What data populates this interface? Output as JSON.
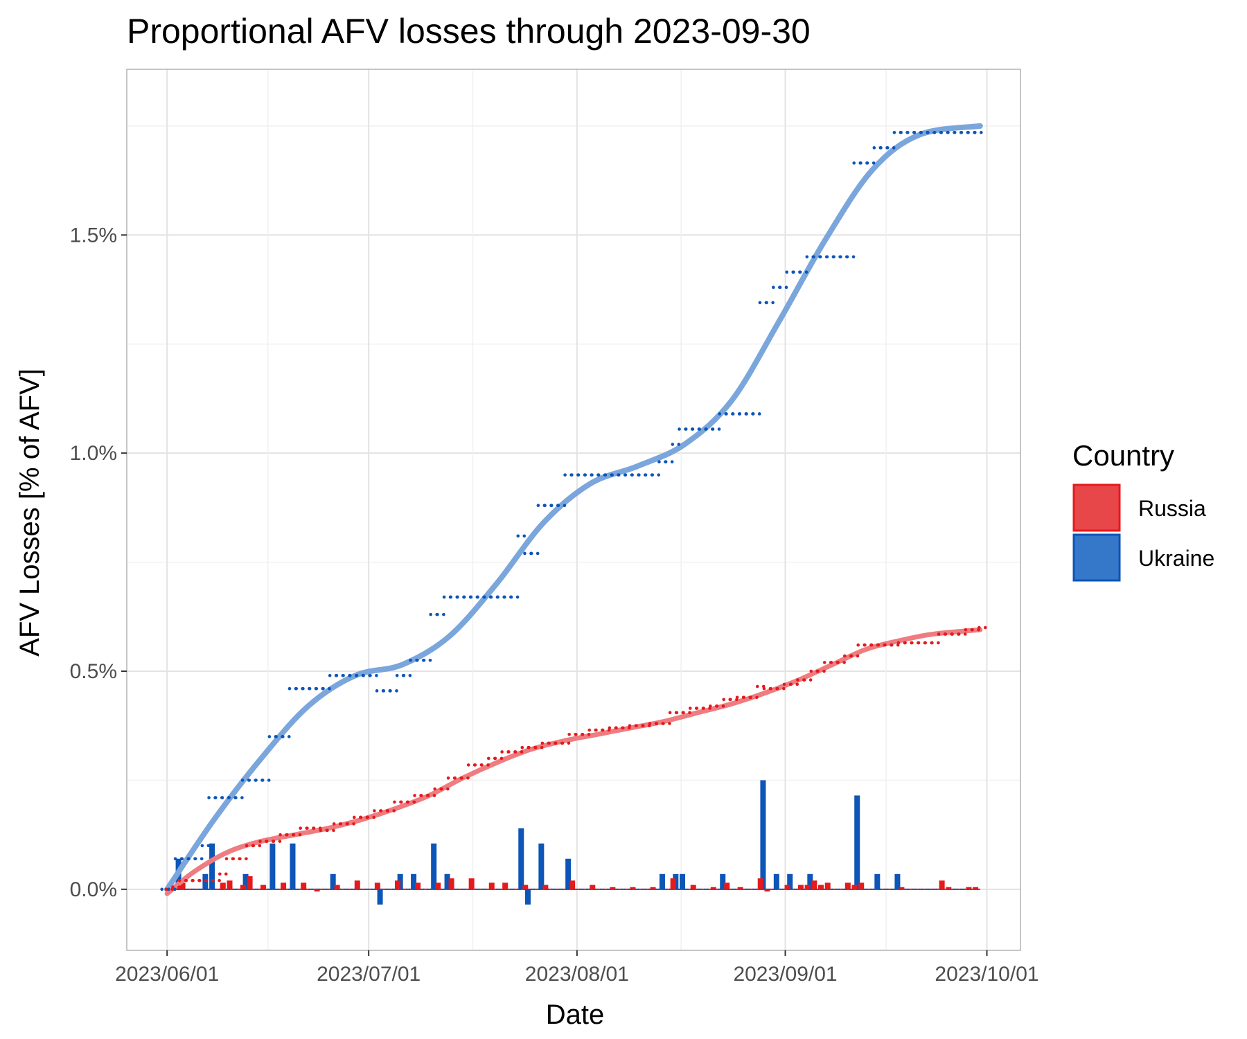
{
  "chart_data": {
    "type": "line",
    "title": "Proportional AFV losses through 2023-09-30",
    "xlabel": "Date",
    "ylabel": "AFV Losses [% of AFV]",
    "xlim": [
      "2023-05-26",
      "2023-10-06"
    ],
    "ylim": [
      -0.14,
      1.88
    ],
    "x_ticks": [
      "2023-06-01",
      "2023-07-01",
      "2023-08-01",
      "2023-09-01",
      "2023-10-01"
    ],
    "x_tick_labels": [
      "2023/06/01",
      "2023/07/01",
      "2023/08/01",
      "2023/09/01",
      "2023/10/01"
    ],
    "y_ticks": [
      0,
      0.5,
      1.0,
      1.5
    ],
    "y_tick_labels": [
      "0.0%",
      "0.5%",
      "1.0%",
      "1.5%"
    ],
    "grid": true,
    "legend": {
      "title": "Country",
      "position": "right",
      "entries": [
        "Russia",
        "Ukraine"
      ]
    },
    "colors": {
      "Russia": {
        "point": "#e41a1c",
        "fill": "#e8474a",
        "smooth": "#ee7c80"
      },
      "Ukraine": {
        "point": "#0d55b7",
        "fill": "#3577c8",
        "smooth": "#7aa6dc"
      }
    },
    "series": [
      {
        "name": "Ukraine",
        "cumulative_changes": [
          [
            "2023-06-01",
            0.0
          ],
          [
            "2023-06-02",
            0.0
          ],
          [
            "2023-06-03",
            0.07
          ],
          [
            "2023-06-07",
            0.1
          ],
          [
            "2023-06-08",
            0.21
          ],
          [
            "2023-06-13",
            0.25
          ],
          [
            "2023-06-17",
            0.35
          ],
          [
            "2023-06-20",
            0.46
          ],
          [
            "2023-06-26",
            0.49
          ],
          [
            "2023-07-03",
            0.455
          ],
          [
            "2023-07-06",
            0.49
          ],
          [
            "2023-07-08",
            0.525
          ],
          [
            "2023-07-11",
            0.63
          ],
          [
            "2023-07-13",
            0.67
          ],
          [
            "2023-07-24",
            0.81
          ],
          [
            "2023-07-25",
            0.77
          ],
          [
            "2023-07-27",
            0.88
          ],
          [
            "2023-07-31",
            0.95
          ],
          [
            "2023-08-14",
            0.98
          ],
          [
            "2023-08-16",
            1.02
          ],
          [
            "2023-08-17",
            1.055
          ],
          [
            "2023-08-23",
            1.09
          ],
          [
            "2023-08-29",
            1.345
          ],
          [
            "2023-08-31",
            1.38
          ],
          [
            "2023-09-02",
            1.415
          ],
          [
            "2023-09-05",
            1.45
          ],
          [
            "2023-09-12",
            1.665
          ],
          [
            "2023-09-15",
            1.7
          ],
          [
            "2023-09-18",
            1.735
          ]
        ],
        "daily_bars": [
          [
            "2023-06-03",
            0.07
          ],
          [
            "2023-06-07",
            0.035
          ],
          [
            "2023-06-08",
            0.105
          ],
          [
            "2023-06-13",
            0.035
          ],
          [
            "2023-06-17",
            0.105
          ],
          [
            "2023-06-20",
            0.105
          ],
          [
            "2023-06-26",
            0.035
          ],
          [
            "2023-07-03",
            -0.035
          ],
          [
            "2023-07-06",
            0.035
          ],
          [
            "2023-07-08",
            0.035
          ],
          [
            "2023-07-11",
            0.105
          ],
          [
            "2023-07-13",
            0.035
          ],
          [
            "2023-07-24",
            0.14
          ],
          [
            "2023-07-25",
            -0.035
          ],
          [
            "2023-07-27",
            0.105
          ],
          [
            "2023-07-31",
            0.07
          ],
          [
            "2023-08-14",
            0.035
          ],
          [
            "2023-08-16",
            0.035
          ],
          [
            "2023-08-17",
            0.035
          ],
          [
            "2023-08-23",
            0.035
          ],
          [
            "2023-08-29",
            0.25
          ],
          [
            "2023-08-31",
            0.035
          ],
          [
            "2023-09-02",
            0.035
          ],
          [
            "2023-09-05",
            0.035
          ],
          [
            "2023-09-12",
            0.215
          ],
          [
            "2023-09-15",
            0.035
          ],
          [
            "2023-09-18",
            0.035
          ]
        ],
        "smooth": [
          [
            "2023-06-01",
            0.0
          ],
          [
            "2023-06-08",
            0.16
          ],
          [
            "2023-06-15",
            0.3
          ],
          [
            "2023-06-22",
            0.42
          ],
          [
            "2023-06-29",
            0.49
          ],
          [
            "2023-07-06",
            0.515
          ],
          [
            "2023-07-13",
            0.58
          ],
          [
            "2023-07-20",
            0.7
          ],
          [
            "2023-07-27",
            0.84
          ],
          [
            "2023-08-03",
            0.93
          ],
          [
            "2023-08-10",
            0.97
          ],
          [
            "2023-08-17",
            1.02
          ],
          [
            "2023-08-24",
            1.12
          ],
          [
            "2023-08-31",
            1.3
          ],
          [
            "2023-09-07",
            1.49
          ],
          [
            "2023-09-14",
            1.65
          ],
          [
            "2023-09-21",
            1.73
          ],
          [
            "2023-09-30",
            1.75
          ]
        ]
      },
      {
        "name": "Russia",
        "cumulative_changes": [
          [
            "2023-06-01",
            0.0
          ],
          [
            "2023-06-02",
            0.005
          ],
          [
            "2023-06-03",
            0.02
          ],
          [
            "2023-06-09",
            0.035
          ],
          [
            "2023-06-10",
            0.07
          ],
          [
            "2023-06-13",
            0.1
          ],
          [
            "2023-06-15",
            0.11
          ],
          [
            "2023-06-18",
            0.125
          ],
          [
            "2023-06-21",
            0.14
          ],
          [
            "2023-06-24",
            0.135
          ],
          [
            "2023-06-26",
            0.15
          ],
          [
            "2023-06-29",
            0.165
          ],
          [
            "2023-07-02",
            0.18
          ],
          [
            "2023-07-05",
            0.2
          ],
          [
            "2023-07-08",
            0.215
          ],
          [
            "2023-07-11",
            0.23
          ],
          [
            "2023-07-13",
            0.255
          ],
          [
            "2023-07-16",
            0.285
          ],
          [
            "2023-07-19",
            0.3
          ],
          [
            "2023-07-21",
            0.315
          ],
          [
            "2023-07-24",
            0.325
          ],
          [
            "2023-07-27",
            0.335
          ],
          [
            "2023-07-31",
            0.355
          ],
          [
            "2023-08-03",
            0.365
          ],
          [
            "2023-08-06",
            0.37
          ],
          [
            "2023-08-09",
            0.375
          ],
          [
            "2023-08-12",
            0.38
          ],
          [
            "2023-08-15",
            0.405
          ],
          [
            "2023-08-18",
            0.415
          ],
          [
            "2023-08-21",
            0.42
          ],
          [
            "2023-08-23",
            0.435
          ],
          [
            "2023-08-25",
            0.44
          ],
          [
            "2023-08-28",
            0.465
          ],
          [
            "2023-08-29",
            0.46
          ],
          [
            "2023-09-01",
            0.47
          ],
          [
            "2023-09-03",
            0.48
          ],
          [
            "2023-09-05",
            0.5
          ],
          [
            "2023-09-07",
            0.52
          ],
          [
            "2023-09-10",
            0.535
          ],
          [
            "2023-09-12",
            0.56
          ],
          [
            "2023-09-18",
            0.565
          ],
          [
            "2023-09-24",
            0.585
          ],
          [
            "2023-09-28",
            0.595
          ],
          [
            "2023-09-30",
            0.6
          ]
        ],
        "daily_bars": [
          [
            "2023-06-02",
            0.005
          ],
          [
            "2023-06-03",
            0.015
          ],
          [
            "2023-06-09",
            0.015
          ],
          [
            "2023-06-10",
            0.02
          ],
          [
            "2023-06-12",
            0.01
          ],
          [
            "2023-06-13",
            0.03
          ],
          [
            "2023-06-15",
            0.01
          ],
          [
            "2023-06-18",
            0.015
          ],
          [
            "2023-06-21",
            0.015
          ],
          [
            "2023-06-23",
            -0.005
          ],
          [
            "2023-06-26",
            0.01
          ],
          [
            "2023-06-29",
            0.02
          ],
          [
            "2023-07-02",
            0.015
          ],
          [
            "2023-07-05",
            0.02
          ],
          [
            "2023-07-08",
            0.015
          ],
          [
            "2023-07-11",
            0.015
          ],
          [
            "2023-07-13",
            0.025
          ],
          [
            "2023-07-16",
            0.025
          ],
          [
            "2023-07-19",
            0.015
          ],
          [
            "2023-07-21",
            0.015
          ],
          [
            "2023-07-24",
            0.01
          ],
          [
            "2023-07-27",
            0.01
          ],
          [
            "2023-07-31",
            0.02
          ],
          [
            "2023-08-03",
            0.01
          ],
          [
            "2023-08-06",
            0.005
          ],
          [
            "2023-08-09",
            0.005
          ],
          [
            "2023-08-12",
            0.005
          ],
          [
            "2023-08-15",
            0.025
          ],
          [
            "2023-08-18",
            0.01
          ],
          [
            "2023-08-21",
            0.005
          ],
          [
            "2023-08-23",
            0.015
          ],
          [
            "2023-08-25",
            0.005
          ],
          [
            "2023-08-28",
            0.025
          ],
          [
            "2023-08-29",
            -0.005
          ],
          [
            "2023-09-01",
            0.01
          ],
          [
            "2023-09-03",
            0.01
          ],
          [
            "2023-09-04",
            0.01
          ],
          [
            "2023-09-05",
            0.02
          ],
          [
            "2023-09-06",
            0.01
          ],
          [
            "2023-09-07",
            0.015
          ],
          [
            "2023-09-10",
            0.015
          ],
          [
            "2023-09-11",
            0.01
          ],
          [
            "2023-09-12",
            0.015
          ],
          [
            "2023-09-18",
            0.005
          ],
          [
            "2023-09-24",
            0.02
          ],
          [
            "2023-09-25",
            0.005
          ],
          [
            "2023-09-28",
            0.005
          ],
          [
            "2023-09-29",
            0.005
          ]
        ],
        "smooth": [
          [
            "2023-06-01",
            -0.01
          ],
          [
            "2023-06-05",
            0.04
          ],
          [
            "2023-06-10",
            0.085
          ],
          [
            "2023-06-15",
            0.11
          ],
          [
            "2023-06-20",
            0.125
          ],
          [
            "2023-06-25",
            0.14
          ],
          [
            "2023-06-30",
            0.16
          ],
          [
            "2023-07-05",
            0.185
          ],
          [
            "2023-07-10",
            0.215
          ],
          [
            "2023-07-15",
            0.255
          ],
          [
            "2023-07-20",
            0.29
          ],
          [
            "2023-07-25",
            0.32
          ],
          [
            "2023-07-30",
            0.34
          ],
          [
            "2023-08-04",
            0.355
          ],
          [
            "2023-08-09",
            0.37
          ],
          [
            "2023-08-14",
            0.385
          ],
          [
            "2023-08-19",
            0.405
          ],
          [
            "2023-08-24",
            0.425
          ],
          [
            "2023-08-29",
            0.45
          ],
          [
            "2023-09-03",
            0.48
          ],
          [
            "2023-09-08",
            0.515
          ],
          [
            "2023-09-13",
            0.55
          ],
          [
            "2023-09-18",
            0.57
          ],
          [
            "2023-09-23",
            0.585
          ],
          [
            "2023-09-30",
            0.595
          ]
        ]
      }
    ]
  }
}
